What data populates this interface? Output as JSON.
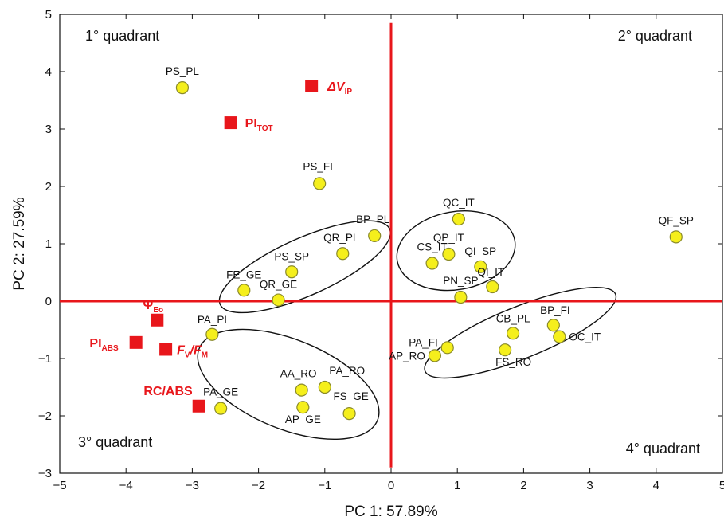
{
  "chart_data": {
    "type": "scatter",
    "xlabel": "PC 1: 57.89%",
    "ylabel": "PC 2: 27.59%",
    "xlim": [
      -5,
      5
    ],
    "ylim": [
      -3,
      5
    ],
    "xticks": [
      -5,
      -4,
      -3,
      -2,
      -1,
      0,
      1,
      2,
      3,
      4,
      5
    ],
    "yticks": [
      -3,
      -2,
      -1,
      0,
      1,
      2,
      3,
      4,
      5
    ],
    "x_tick_labels": [
      "−5",
      "−4",
      "−3",
      "−2",
      "−1",
      "0",
      "1",
      "2",
      "3",
      "4",
      "5"
    ],
    "y_tick_labels": [
      "−3",
      "−2",
      "−1",
      "0",
      "1",
      "2",
      "3",
      "4",
      "5"
    ],
    "grid": false,
    "zero_lines": true,
    "colors": {
      "site_fill": "#f5ef1c",
      "site_stroke": "#8a8a2a",
      "parameter": "#e8161b",
      "ellipse": "#111111"
    },
    "quadrant_labels": [
      {
        "text": "1° quadrant",
        "corner": "top-left"
      },
      {
        "text": "2° quadrant",
        "corner": "top-right"
      },
      {
        "text": "3° quadrant",
        "corner": "bottom-left"
      },
      {
        "text": "4° quadrant",
        "corner": "bottom-right"
      }
    ],
    "sites": [
      {
        "label": "PS_PL",
        "x": -3.15,
        "y": 3.72
      },
      {
        "label": "PS_FI",
        "x": -1.08,
        "y": 2.05
      },
      {
        "label": "BP_PL",
        "x": -0.25,
        "y": 1.14
      },
      {
        "label": "QR_PL",
        "x": -0.73,
        "y": 0.83
      },
      {
        "label": "PS_SP",
        "x": -1.5,
        "y": 0.51
      },
      {
        "label": "FE_GE",
        "x": -2.22,
        "y": 0.19
      },
      {
        "label": "QR_GE",
        "x": -1.7,
        "y": 0.02
      },
      {
        "label": "QC_IT",
        "x": 1.02,
        "y": 1.43
      },
      {
        "label": "QP_IT",
        "x": 0.87,
        "y": 0.82
      },
      {
        "label": "CS_IT",
        "x": 0.62,
        "y": 0.66
      },
      {
        "label": "QI_SP",
        "x": 1.35,
        "y": 0.6
      },
      {
        "label": "QI_IT",
        "x": 1.53,
        "y": 0.25
      },
      {
        "label": "PN_SP",
        "x": 1.05,
        "y": 0.07
      },
      {
        "label": "QF_SP",
        "x": 4.3,
        "y": 1.12
      },
      {
        "label": "BP_FI",
        "x": 2.45,
        "y": -0.42
      },
      {
        "label": "OC_IT",
        "x": 2.54,
        "y": -0.62
      },
      {
        "label": "CB_PL",
        "x": 1.84,
        "y": -0.56
      },
      {
        "label": "PA_FI",
        "x": 0.85,
        "y": -0.81
      },
      {
        "label": "AP_RO",
        "x": 0.66,
        "y": -0.95
      },
      {
        "label": "FS_RO",
        "x": 1.72,
        "y": -0.85
      },
      {
        "label": "PA_PL",
        "x": -2.7,
        "y": -0.58
      },
      {
        "label": "AA_RO",
        "x": -1.35,
        "y": -1.55
      },
      {
        "label": "PA_RO",
        "x": -1.0,
        "y": -1.5
      },
      {
        "label": "AP_GE",
        "x": -1.33,
        "y": -1.85
      },
      {
        "label": "FS_GE",
        "x": -0.63,
        "y": -1.96
      },
      {
        "label": "PA_GE",
        "x": -2.57,
        "y": -1.87
      }
    ],
    "parameters": [
      {
        "label": "ΔV",
        "sub": "IP",
        "x": -1.2,
        "y": 3.75
      },
      {
        "label": "PI",
        "sub": "TOT",
        "x": -2.42,
        "y": 3.11
      },
      {
        "label": "Ψ",
        "sub": "Eo",
        "x": -3.53,
        "y": -0.33
      },
      {
        "label": "PI",
        "sub": "ABS",
        "x": -3.85,
        "y": -0.72
      },
      {
        "label": "F",
        "sub": "V",
        "label2": "/F",
        "sub2": "M",
        "x": -3.4,
        "y": -0.84
      },
      {
        "label": "RC/ABS",
        "sub": "",
        "x": -2.9,
        "y": -1.83
      }
    ]
  }
}
